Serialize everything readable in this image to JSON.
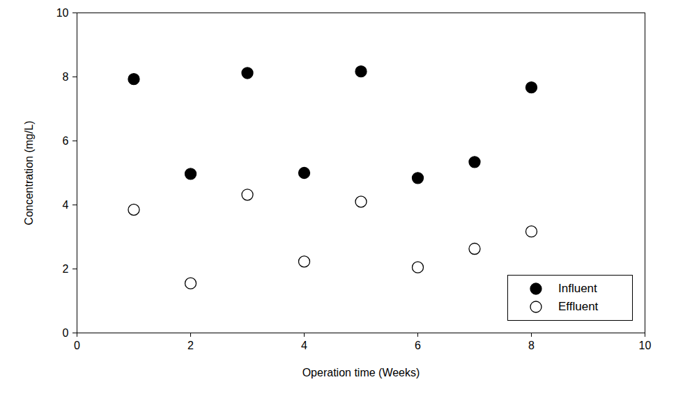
{
  "chart_data": {
    "type": "scatter",
    "x_label": "Operation time (Weeks)",
    "y_label": "Concentration (mg/L)",
    "xlim": [
      0,
      10
    ],
    "xticks": [
      0,
      2,
      4,
      6,
      8,
      10
    ],
    "ylim": [
      0,
      10
    ],
    "yticks": [
      0,
      2,
      4,
      6,
      8,
      10
    ],
    "legend": "bottom-right",
    "series": [
      {
        "name": "Influent",
        "color": "#000000",
        "marker": "filled",
        "x": [
          1,
          2,
          3,
          4,
          5,
          6,
          7,
          8
        ],
        "values": [
          7.93,
          4.97,
          8.12,
          5.0,
          8.17,
          4.84,
          5.34,
          7.67
        ]
      },
      {
        "name": "Effluent",
        "color": "#000000",
        "marker": "open",
        "x": [
          1,
          2,
          3,
          4,
          5,
          6,
          7,
          8
        ],
        "values": [
          3.85,
          1.55,
          4.32,
          2.23,
          4.1,
          2.05,
          2.63,
          3.17
        ]
      }
    ]
  }
}
